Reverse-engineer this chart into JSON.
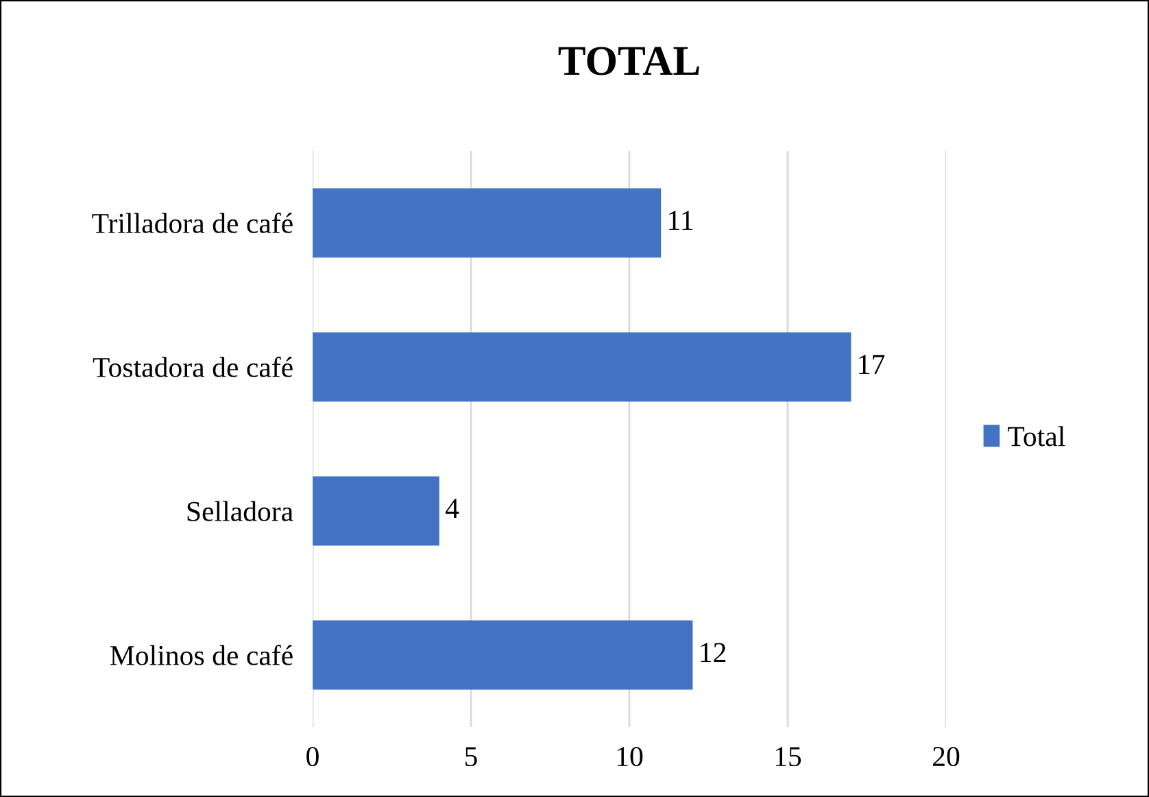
{
  "chart_data": {
    "type": "bar",
    "orientation": "horizontal",
    "title": "TOTAL",
    "categories": [
      "Trilladora de café",
      "Tostadora de café",
      "Selladora",
      "Molinos de café"
    ],
    "series": [
      {
        "name": "Total",
        "color": "#4472c4",
        "values": [
          11,
          17,
          4,
          12
        ]
      }
    ],
    "xlim": [
      0,
      20
    ],
    "xticks": [
      0,
      5,
      10,
      15,
      20
    ],
    "grid": "x",
    "legend": "right",
    "data_labels": true
  }
}
